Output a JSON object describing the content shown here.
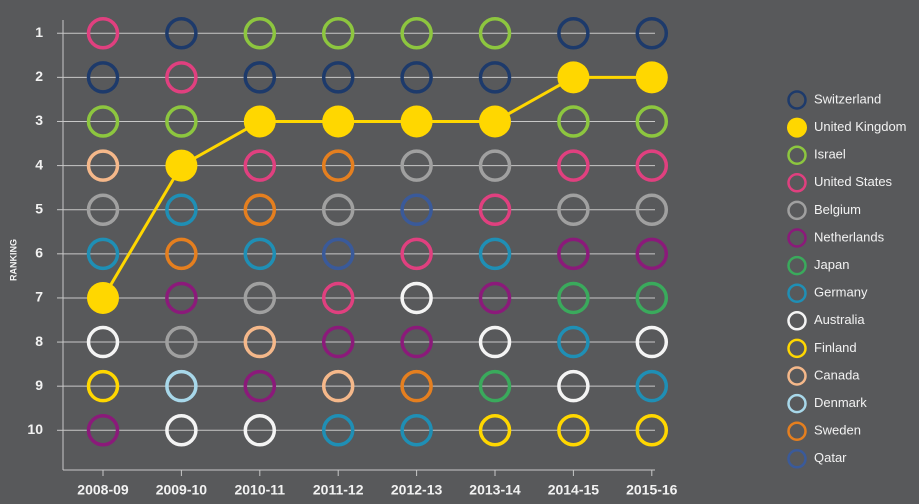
{
  "chart_data": {
    "type": "ranking",
    "ylabel": "RANKING",
    "categories": [
      "2008-09",
      "2009-10",
      "2010-11",
      "2011-12",
      "2012-13",
      "2013-14",
      "2014-15",
      "2015-16"
    ],
    "ylim": [
      0.7,
      10.9
    ],
    "y_inverted": true,
    "yticks": [
      1,
      2,
      3,
      4,
      5,
      6,
      7,
      8,
      9,
      10
    ],
    "grid": true,
    "legend": "right",
    "series": [
      {
        "name": "Switzerland",
        "color": "#1d3a6b",
        "values": [
          2,
          1,
          2,
          2,
          2,
          2,
          1,
          1
        ]
      },
      {
        "name": "United Kingdom",
        "color": "#ffd700",
        "filled": true,
        "line": true,
        "values": [
          7,
          4,
          3,
          3,
          3,
          3,
          2,
          2
        ]
      },
      {
        "name": "Israel",
        "color": "#8dc63f",
        "values": [
          3,
          3,
          1,
          1,
          1,
          1,
          3,
          3
        ]
      },
      {
        "name": "United States",
        "color": "#e0407f",
        "values": [
          1,
          2,
          4,
          7,
          6,
          5,
          4,
          4
        ]
      },
      {
        "name": "Belgium",
        "color": "#a0a0a0",
        "values": [
          5,
          8,
          7,
          5,
          4,
          4,
          5,
          5
        ]
      },
      {
        "name": "Netherlands",
        "color": "#8b1a7a",
        "values": [
          10,
          7,
          9,
          8,
          8,
          7,
          6,
          6
        ]
      },
      {
        "name": "Japan",
        "color": "#3aaa5c",
        "values": [
          null,
          null,
          null,
          null,
          null,
          9,
          7,
          7
        ]
      },
      {
        "name": "Germany",
        "color": "#1f8fb5",
        "values": [
          6,
          5,
          6,
          10,
          10,
          6,
          8,
          9
        ]
      },
      {
        "name": "Australia",
        "color": "#f4f4f4",
        "values": [
          8,
          10,
          10,
          null,
          7,
          8,
          9,
          8
        ]
      },
      {
        "name": "Finland",
        "color": "#ffd700",
        "values": [
          9,
          null,
          null,
          null,
          null,
          10,
          10,
          10
        ]
      },
      {
        "name": "Canada",
        "color": "#f5b88a",
        "values": [
          4,
          null,
          8,
          9,
          null,
          null,
          null,
          null
        ]
      },
      {
        "name": "Denmark",
        "color": "#a8d8ea",
        "values": [
          null,
          9,
          null,
          null,
          null,
          null,
          null,
          null
        ]
      },
      {
        "name": "Sweden",
        "color": "#e57f1f",
        "values": [
          null,
          6,
          5,
          4,
          9,
          null,
          null,
          null
        ]
      },
      {
        "name": "Qatar",
        "color": "#3a5a9a",
        "values": [
          null,
          null,
          null,
          6,
          5,
          null,
          null,
          null
        ]
      }
    ]
  }
}
